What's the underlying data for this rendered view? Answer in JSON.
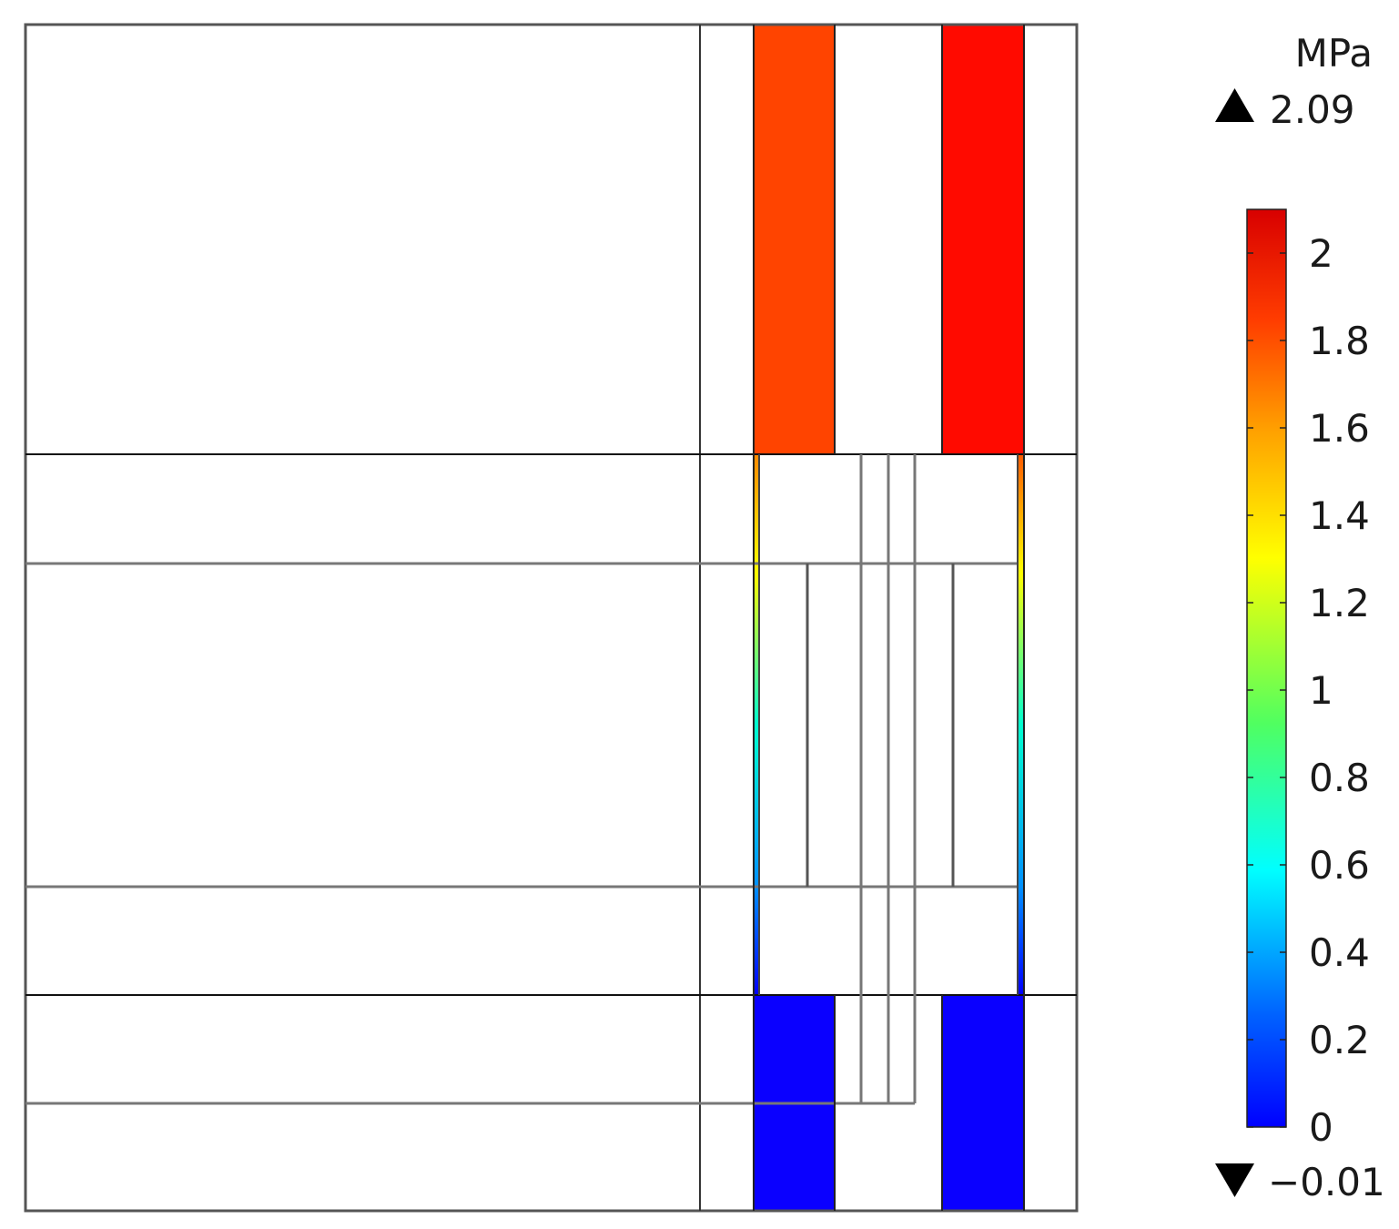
{
  "legend": {
    "unit": "MPa",
    "max_label": "2.09",
    "min_label": "−0.01",
    "max_marker_icon": "triangle-up-icon",
    "min_marker_icon": "triangle-down-icon",
    "ticks": [
      "2",
      "1.8",
      "1.6",
      "1.4",
      "1.2",
      "1",
      "0.8",
      "0.6",
      "0.4",
      "0.2",
      "0"
    ],
    "tick_values": [
      2,
      1.8,
      1.6,
      1.4,
      1.2,
      1,
      0.8,
      0.6,
      0.4,
      0.2,
      0
    ],
    "range": [
      0,
      2.1
    ],
    "colormap": [
      "#0000ff",
      "#0080ff",
      "#00ffff",
      "#40ff80",
      "#ffff00",
      "#ff9900",
      "#ff4000",
      "#ff0000",
      "#cc0000"
    ]
  },
  "regions": {
    "top_left_color": "#ff4400",
    "top_right_color": "#ff0a00",
    "bottom_left_color": "#0a00ff",
    "bottom_right_color": "#0a00ff"
  }
}
